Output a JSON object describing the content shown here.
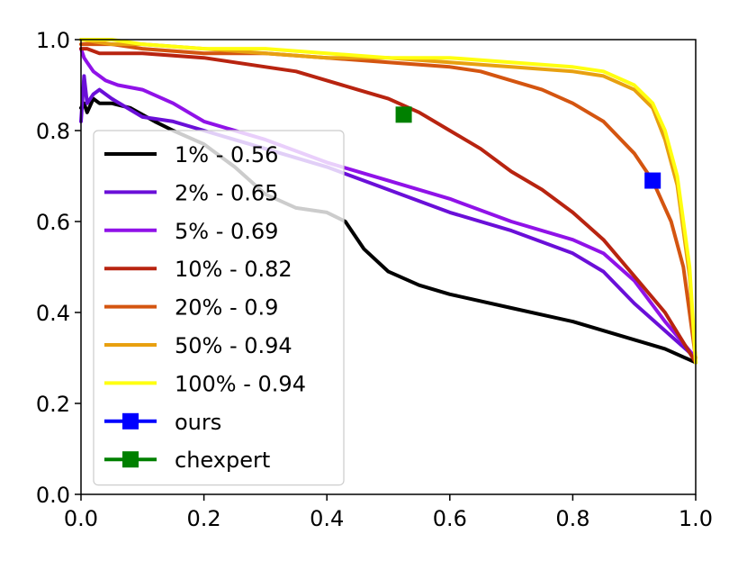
{
  "chart_data": {
    "type": "line",
    "title": "",
    "xlabel": "",
    "ylabel": "",
    "xlim": [
      0.0,
      1.0
    ],
    "ylim": [
      0.0,
      1.0
    ],
    "x_ticks": [
      "0.0",
      "0.2",
      "0.4",
      "0.6",
      "0.8",
      "1.0"
    ],
    "y_ticks": [
      "0.0",
      "0.2",
      "0.4",
      "0.6",
      "0.8",
      "1.0"
    ],
    "grid": false,
    "legend_position": "center-left",
    "series": [
      {
        "name": "1% - 0.56",
        "color": "#000000",
        "kind": "line",
        "x": [
          0.0,
          0.005,
          0.01,
          0.02,
          0.03,
          0.05,
          0.08,
          0.12,
          0.15,
          0.2,
          0.25,
          0.3,
          0.35,
          0.4,
          0.43,
          0.46,
          0.5,
          0.55,
          0.6,
          0.7,
          0.8,
          0.9,
          0.95,
          1.0
        ],
        "y": [
          0.85,
          0.86,
          0.84,
          0.87,
          0.86,
          0.86,
          0.85,
          0.82,
          0.8,
          0.77,
          0.72,
          0.66,
          0.63,
          0.62,
          0.6,
          0.54,
          0.49,
          0.46,
          0.44,
          0.41,
          0.38,
          0.34,
          0.32,
          0.29
        ]
      },
      {
        "name": "2% - 0.65",
        "color": "#6a0fd8",
        "kind": "line",
        "x": [
          0.0,
          0.005,
          0.01,
          0.02,
          0.03,
          0.05,
          0.1,
          0.15,
          0.2,
          0.3,
          0.4,
          0.5,
          0.6,
          0.7,
          0.8,
          0.85,
          0.9,
          0.95,
          1.0
        ],
        "y": [
          0.82,
          0.92,
          0.86,
          0.88,
          0.89,
          0.87,
          0.83,
          0.82,
          0.8,
          0.76,
          0.72,
          0.67,
          0.62,
          0.58,
          0.53,
          0.49,
          0.42,
          0.36,
          0.3
        ]
      },
      {
        "name": "5% - 0.69",
        "color": "#9012e8",
        "kind": "line",
        "x": [
          0.0,
          0.005,
          0.01,
          0.02,
          0.04,
          0.06,
          0.1,
          0.15,
          0.2,
          0.3,
          0.4,
          0.5,
          0.6,
          0.7,
          0.8,
          0.85,
          0.9,
          0.95,
          1.0
        ],
        "y": [
          0.98,
          0.96,
          0.95,
          0.93,
          0.91,
          0.9,
          0.89,
          0.86,
          0.82,
          0.78,
          0.73,
          0.69,
          0.65,
          0.6,
          0.56,
          0.53,
          0.47,
          0.38,
          0.3
        ]
      },
      {
        "name": "10% - 0.82",
        "color": "#b82410",
        "kind": "line",
        "x": [
          0.0,
          0.01,
          0.03,
          0.05,
          0.1,
          0.2,
          0.3,
          0.35,
          0.4,
          0.45,
          0.5,
          0.55,
          0.6,
          0.65,
          0.7,
          0.75,
          0.8,
          0.85,
          0.9,
          0.95,
          1.0
        ],
        "y": [
          0.98,
          0.98,
          0.97,
          0.97,
          0.97,
          0.96,
          0.94,
          0.93,
          0.91,
          0.89,
          0.87,
          0.84,
          0.8,
          0.76,
          0.71,
          0.67,
          0.62,
          0.56,
          0.48,
          0.4,
          0.29
        ]
      },
      {
        "name": "20% - 0.9",
        "color": "#d45510",
        "kind": "line",
        "x": [
          0.0,
          0.05,
          0.1,
          0.2,
          0.3,
          0.4,
          0.5,
          0.6,
          0.65,
          0.7,
          0.75,
          0.8,
          0.85,
          0.9,
          0.93,
          0.96,
          0.98,
          1.0
        ],
        "y": [
          0.99,
          0.99,
          0.98,
          0.97,
          0.97,
          0.96,
          0.95,
          0.94,
          0.93,
          0.91,
          0.89,
          0.86,
          0.82,
          0.75,
          0.69,
          0.6,
          0.5,
          0.3
        ]
      },
      {
        "name": "50% - 0.94",
        "color": "#e8a010",
        "kind": "line",
        "x": [
          0.0,
          0.05,
          0.1,
          0.2,
          0.3,
          0.4,
          0.5,
          0.6,
          0.7,
          0.8,
          0.85,
          0.9,
          0.93,
          0.95,
          0.97,
          0.99,
          1.0
        ],
        "y": [
          1.0,
          0.99,
          0.99,
          0.98,
          0.97,
          0.96,
          0.96,
          0.95,
          0.94,
          0.93,
          0.92,
          0.89,
          0.85,
          0.78,
          0.68,
          0.48,
          0.29
        ]
      },
      {
        "name": "100% - 0.94",
        "color": "#ffff10",
        "kind": "line",
        "x": [
          0.0,
          0.05,
          0.1,
          0.2,
          0.3,
          0.4,
          0.5,
          0.6,
          0.7,
          0.8,
          0.85,
          0.9,
          0.93,
          0.95,
          0.97,
          0.99,
          1.0
        ],
        "y": [
          1.0,
          1.0,
          0.99,
          0.98,
          0.98,
          0.97,
          0.96,
          0.96,
          0.95,
          0.94,
          0.93,
          0.9,
          0.86,
          0.8,
          0.7,
          0.5,
          0.29
        ]
      },
      {
        "name": "ours",
        "color": "#0000ff",
        "kind": "marker",
        "x": [
          0.93
        ],
        "y": [
          0.69
        ]
      },
      {
        "name": "chexpert",
        "color": "#008000",
        "kind": "marker",
        "x": [
          0.525
        ],
        "y": [
          0.835
        ]
      }
    ]
  }
}
